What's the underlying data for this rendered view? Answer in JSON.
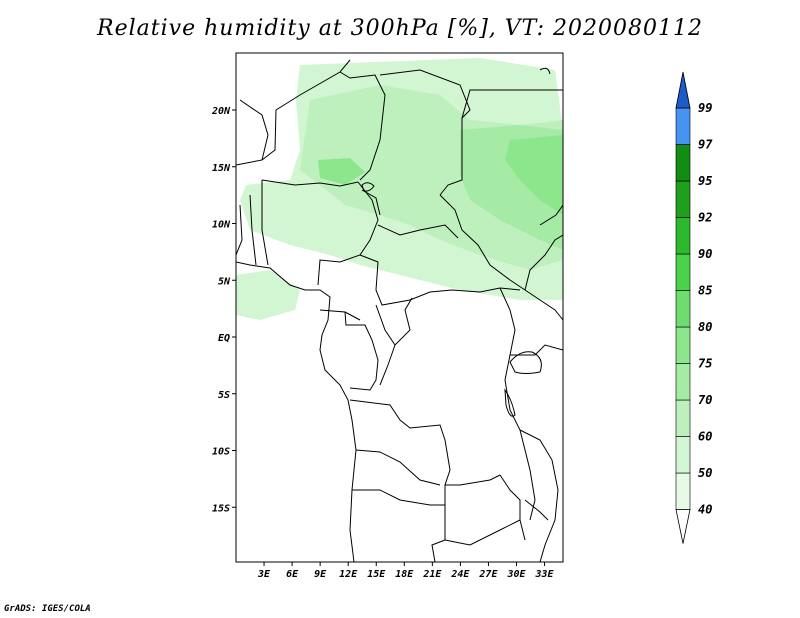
{
  "title": "Relative humidity at 300hPa [%], VT: 2020080112",
  "credit": "GrADS: IGES/COLA",
  "chart_data": {
    "type": "heatmap",
    "variable": "Relative humidity",
    "level": "300hPa",
    "units": "%",
    "valid_time": "2020080112",
    "lon_range": [
      0,
      35
    ],
    "lat_range": [
      -20,
      25
    ],
    "x_ticks": [
      "3E",
      "6E",
      "9E",
      "12E",
      "15E",
      "18E",
      "21E",
      "24E",
      "27E",
      "30E",
      "33E"
    ],
    "x_tick_values": [
      3,
      6,
      9,
      12,
      15,
      18,
      21,
      24,
      27,
      30,
      33
    ],
    "y_ticks": [
      "20N",
      "15N",
      "10N",
      "5N",
      "EQ",
      "5S",
      "10S",
      "15S"
    ],
    "y_tick_values": [
      20,
      15,
      10,
      5,
      0,
      -5,
      -10,
      -15
    ],
    "colorbar": {
      "labels": [
        "40",
        "50",
        "60",
        "70",
        "75",
        "80",
        "85",
        "90",
        "92",
        "95",
        "97",
        "99"
      ],
      "colors": [
        "#ffffff",
        "#e6fae6",
        "#d2f5d2",
        "#bef0be",
        "#a5eba5",
        "#8ce68c",
        "#6edc6e",
        "#4bd24b",
        "#2db92d",
        "#1ea01e",
        "#128c12",
        "#4694f0",
        "#2878dc",
        "#1e5ac8"
      ]
    },
    "humidity_areas": [
      {
        "level": "50-60",
        "color": "#d2f5d2"
      },
      {
        "level": "60-70",
        "color": "#bef0be"
      },
      {
        "level": "70-75",
        "color": "#a5eba5"
      },
      {
        "level": "75-80",
        "color": "#8ce68c"
      }
    ]
  }
}
